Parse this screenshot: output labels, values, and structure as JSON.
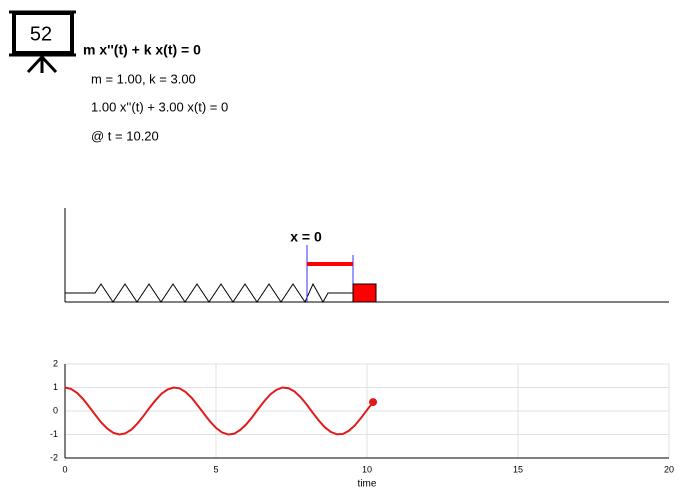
{
  "icon_label": "52",
  "equation": "m x''(t) + k x(t) = 0",
  "parameters": "m = 1.00, k = 3.00",
  "instance": "1.00 x''(t) + 3.00 x(t) = 0",
  "time_label": "@ t = 10.20",
  "diagram": {
    "equilibrium_label": "x = 0"
  },
  "chart_data": {
    "type": "line",
    "xlabel": "time",
    "x": [
      0,
      0.2,
      0.4,
      0.6,
      0.8,
      1,
      1.2,
      1.4,
      1.6,
      1.8,
      2,
      2.2,
      2.4,
      2.6,
      2.8,
      3,
      3.2,
      3.4,
      3.6,
      3.8,
      4,
      4.2,
      4.4,
      4.6,
      4.8,
      5,
      5.2,
      5.4,
      5.6,
      5.8,
      6,
      6.2,
      6.4,
      6.6,
      6.8,
      7,
      7.2,
      7.4,
      7.6,
      7.8,
      8,
      8.2,
      8.4,
      8.6,
      8.8,
      9,
      9.2,
      9.4,
      9.6,
      9.8,
      10,
      10.2
    ],
    "series": [
      {
        "color": "#e31a1c",
        "values": [
          1,
          0.94,
          0.77,
          0.51,
          0.18,
          -0.16,
          -0.49,
          -0.75,
          -0.93,
          -1,
          -0.95,
          -0.79,
          -0.53,
          -0.21,
          0.14,
          0.46,
          0.74,
          0.92,
          1,
          0.96,
          0.8,
          0.55,
          0.23,
          -0.11,
          -0.44,
          -0.72,
          -0.91,
          -1,
          -0.97,
          -0.81,
          -0.57,
          -0.26,
          0.09,
          0.42,
          0.71,
          0.9,
          1,
          0.97,
          0.83,
          0.59,
          0.28,
          -0.07,
          -0.4,
          -0.69,
          -0.89,
          -0.99,
          -0.98,
          -0.84,
          -0.61,
          -0.3,
          0.04,
          0.38
        ]
      }
    ],
    "xlim": [
      0,
      20
    ],
    "ylim": [
      -2,
      2
    ],
    "xticks": [
      0,
      5,
      10,
      15,
      20
    ],
    "yticks": [
      -2,
      -1,
      0,
      1,
      2
    ],
    "grid": true
  }
}
